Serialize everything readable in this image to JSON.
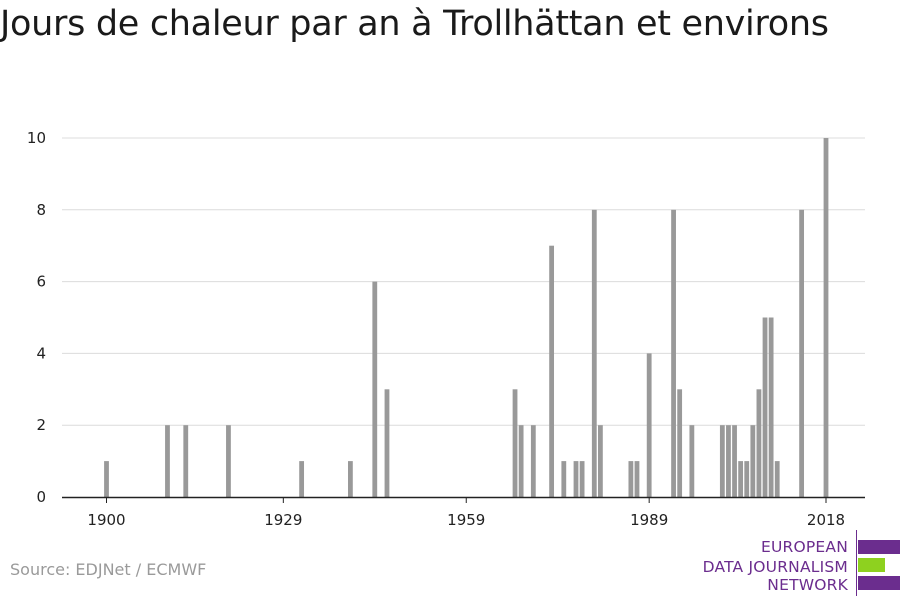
{
  "title": "Jours de chaleur par an à Trollhättan et environs",
  "source": "Source: EDJNet / ECMWF",
  "logo": {
    "lines": [
      "EUROPEAN",
      "DATA JOURNALISM",
      "NETWORK"
    ],
    "colors": {
      "purple": "#6b2d8e",
      "green": "#8ed11f"
    }
  },
  "chart_data": {
    "type": "bar",
    "title": "Jours de chaleur par an à Trollhättan et environs",
    "xlabel": "",
    "ylabel": "",
    "xlim": [
      1900,
      2018
    ],
    "ylim": [
      0,
      10
    ],
    "x_ticks": [
      1900,
      1929,
      1959,
      1989,
      2018
    ],
    "y_ticks": [
      0,
      2,
      4,
      6,
      8,
      10
    ],
    "grid": true,
    "bar_color": "#999999",
    "x": [
      1900,
      1901,
      1902,
      1903,
      1904,
      1905,
      1906,
      1907,
      1908,
      1909,
      1910,
      1911,
      1912,
      1913,
      1914,
      1915,
      1916,
      1917,
      1918,
      1919,
      1920,
      1921,
      1922,
      1923,
      1924,
      1925,
      1926,
      1927,
      1928,
      1929,
      1930,
      1931,
      1932,
      1933,
      1934,
      1935,
      1936,
      1937,
      1938,
      1939,
      1940,
      1941,
      1942,
      1943,
      1944,
      1945,
      1946,
      1947,
      1948,
      1949,
      1950,
      1951,
      1952,
      1953,
      1954,
      1955,
      1956,
      1957,
      1958,
      1959,
      1960,
      1961,
      1962,
      1963,
      1964,
      1965,
      1966,
      1967,
      1968,
      1969,
      1970,
      1971,
      1972,
      1973,
      1974,
      1975,
      1976,
      1977,
      1978,
      1979,
      1980,
      1981,
      1982,
      1983,
      1984,
      1985,
      1986,
      1987,
      1988,
      1989,
      1990,
      1991,
      1992,
      1993,
      1994,
      1995,
      1996,
      1997,
      1998,
      1999,
      2000,
      2001,
      2002,
      2003,
      2004,
      2005,
      2006,
      2007,
      2008,
      2009,
      2010,
      2011,
      2012,
      2013,
      2014,
      2015,
      2016,
      2017,
      2018
    ],
    "values": [
      1,
      0,
      0,
      0,
      0,
      0,
      0,
      0,
      0,
      0,
      2,
      0,
      0,
      2,
      0,
      0,
      0,
      0,
      0,
      0,
      2,
      0,
      0,
      0,
      0,
      0,
      0,
      0,
      0,
      0,
      0,
      0,
      1,
      0,
      0,
      0,
      0,
      0,
      0,
      0,
      1,
      0,
      0,
      0,
      6,
      0,
      3,
      0,
      0,
      0,
      0,
      0,
      0,
      0,
      0,
      0,
      0,
      0,
      0,
      0,
      0,
      0,
      0,
      0,
      0,
      0,
      0,
      3,
      2,
      0,
      2,
      0,
      0,
      7,
      0,
      1,
      0,
      1,
      1,
      0,
      8,
      2,
      0,
      0,
      0,
      0,
      1,
      1,
      0,
      4,
      0,
      0,
      0,
      8,
      3,
      0,
      2,
      0,
      0,
      0,
      0,
      2,
      2,
      2,
      1,
      1,
      2,
      3,
      5,
      5,
      1,
      0,
      0,
      0,
      8,
      0,
      0,
      0,
      10
    ]
  }
}
